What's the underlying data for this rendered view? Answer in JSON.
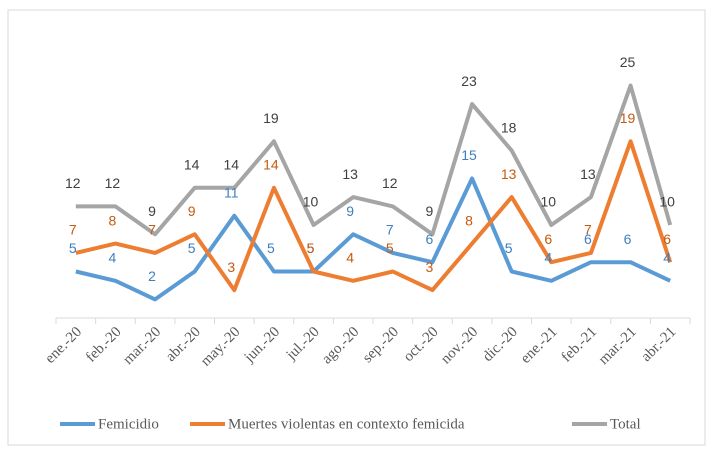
{
  "chart_data": {
    "type": "line",
    "categories": [
      "ene.-20",
      "feb.-20",
      "mar.-20",
      "abr.-20",
      "may.-20",
      "jun.-20",
      "jul.-20",
      "ago.-20",
      "sep.-20",
      "oct.-20",
      "nov.-20",
      "dic.-20",
      "ene.-21",
      "feb.-21",
      "mar.-21",
      "abr.-21"
    ],
    "series": [
      {
        "name": "Femicidio",
        "color": "#5b9bd5",
        "label_color": "#3f7fbf",
        "values": [
          5,
          4,
          2,
          5,
          11,
          5,
          5,
          9,
          7,
          6,
          15,
          5,
          4,
          6,
          6,
          4
        ]
      },
      {
        "name": "Muertes violentas en contexto femicida",
        "color": "#ed7d31",
        "label_color": "#c55a11",
        "values": [
          7,
          8,
          7,
          9,
          3,
          14,
          5,
          4,
          5,
          3,
          8,
          13,
          6,
          7,
          19,
          6
        ]
      },
      {
        "name": "Total",
        "color": "#a5a5a5",
        "label_color": "#404040",
        "values": [
          12,
          12,
          9,
          14,
          14,
          19,
          10,
          13,
          12,
          9,
          23,
          18,
          10,
          13,
          25,
          10
        ]
      }
    ],
    "legend": "bottom"
  }
}
